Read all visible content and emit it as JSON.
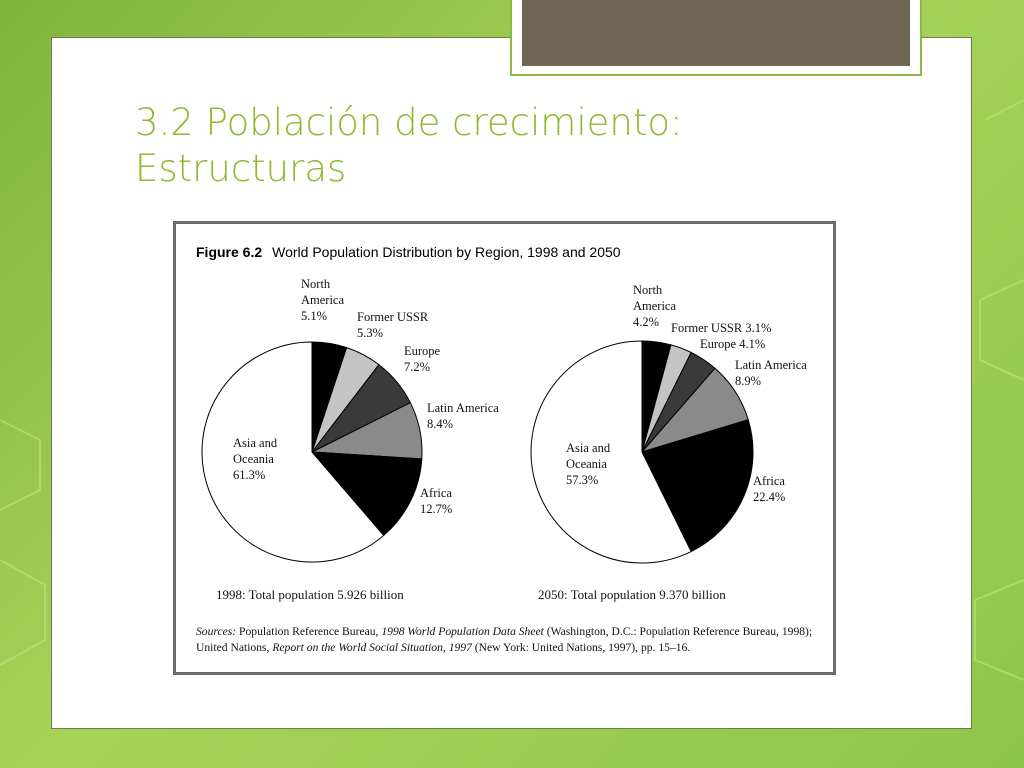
{
  "slide": {
    "title_line1": "3.2 Población de crecimiento:",
    "title_line2": "Estructuras"
  },
  "figure": {
    "label": "Figure 6.2",
    "caption": "World Population Distribution by Region, 1998 and 2050",
    "sources": {
      "prefix": "Sources:",
      "part1": " Population Reference Bureau, ",
      "italic1": "1998 World Population Data Sheet",
      "part2": " (Washington, D.C.: Population Reference Bureau, 1998); United Nations, ",
      "italic2": "Report on the World Social Situation, 1997",
      "part3": " (New York: United Nations, 1997), pp. 15–16."
    }
  },
  "chart_data": [
    {
      "type": "pie",
      "title": "1998: Total population 5.926 billion",
      "slices": [
        {
          "label": "North America",
          "value": 5.1,
          "display": "5.1%",
          "color": "#000000"
        },
        {
          "label": "Former USSR",
          "value": 5.3,
          "display": "5.3%",
          "color": "#c4c4c4"
        },
        {
          "label": "Europe",
          "value": 7.2,
          "display": "7.2%",
          "color": "#3a3a3a"
        },
        {
          "label": "Latin America",
          "value": 8.4,
          "display": "8.4%",
          "color": "#8a8a8a"
        },
        {
          "label": "Africa",
          "value": 12.7,
          "display": "12.7%",
          "color": "#000000"
        },
        {
          "label": "Asia and Oceania",
          "value": 61.3,
          "display": "61.3%",
          "color": "#ffffff"
        }
      ]
    },
    {
      "type": "pie",
      "title": "2050: Total population 9.370 billion",
      "slices": [
        {
          "label": "North America",
          "value": 4.2,
          "display": "4.2%",
          "color": "#000000"
        },
        {
          "label": "Former USSR",
          "value": 3.1,
          "display": "3.1%",
          "color": "#c4c4c4"
        },
        {
          "label": "Europe",
          "value": 4.1,
          "display": "4.1%",
          "color": "#3a3a3a"
        },
        {
          "label": "Latin America",
          "value": 8.9,
          "display": "8.9%",
          "color": "#8a8a8a"
        },
        {
          "label": "Africa",
          "value": 22.4,
          "display": "22.4%",
          "color": "#000000"
        },
        {
          "label": "Asia and Oceania",
          "value": 57.3,
          "display": "57.3%",
          "color": "#ffffff"
        }
      ]
    }
  ]
}
